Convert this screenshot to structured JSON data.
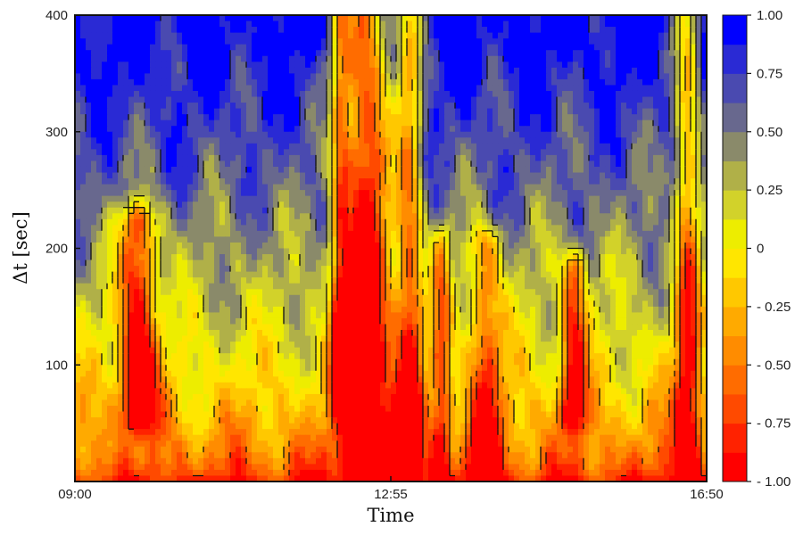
{
  "chart_data": {
    "type": "heatmap",
    "xlabel": "Time",
    "ylabel": "Δt [sec]",
    "x_ticks": [
      "09:00",
      "12:55",
      "16:50"
    ],
    "xlim": [
      "09:00",
      "16:50"
    ],
    "y_ticks": [
      100,
      200,
      300,
      400
    ],
    "ylim": [
      0,
      400
    ],
    "colorbar": {
      "range": [
        -1.0,
        1.0
      ],
      "tick_labels": [
        "1.00",
        "0.75",
        "0.50",
        "0.25",
        "0",
        "- 0.25",
        "- 0.50",
        "- 0.75",
        "- 1.00"
      ],
      "levels": [
        -1.0,
        -0.875,
        -0.75,
        -0.625,
        -0.5,
        -0.375,
        -0.25,
        -0.125,
        0.0,
        0.125,
        0.25,
        0.375,
        0.5,
        0.625,
        0.75,
        0.875,
        1.0
      ],
      "colors_low_to_high": [
        "#ff0000",
        "#ff2200",
        "#ff4a00",
        "#ff6c00",
        "#ff8c00",
        "#ffaa00",
        "#ffc800",
        "#ffe600",
        "#eded00",
        "#d2d22a",
        "#b0b048",
        "#8a8a6a",
        "#68688e",
        "#4a4ab0",
        "#2a2ad4",
        "#0000ff"
      ]
    },
    "grid": false,
    "contour_lines": true
  }
}
